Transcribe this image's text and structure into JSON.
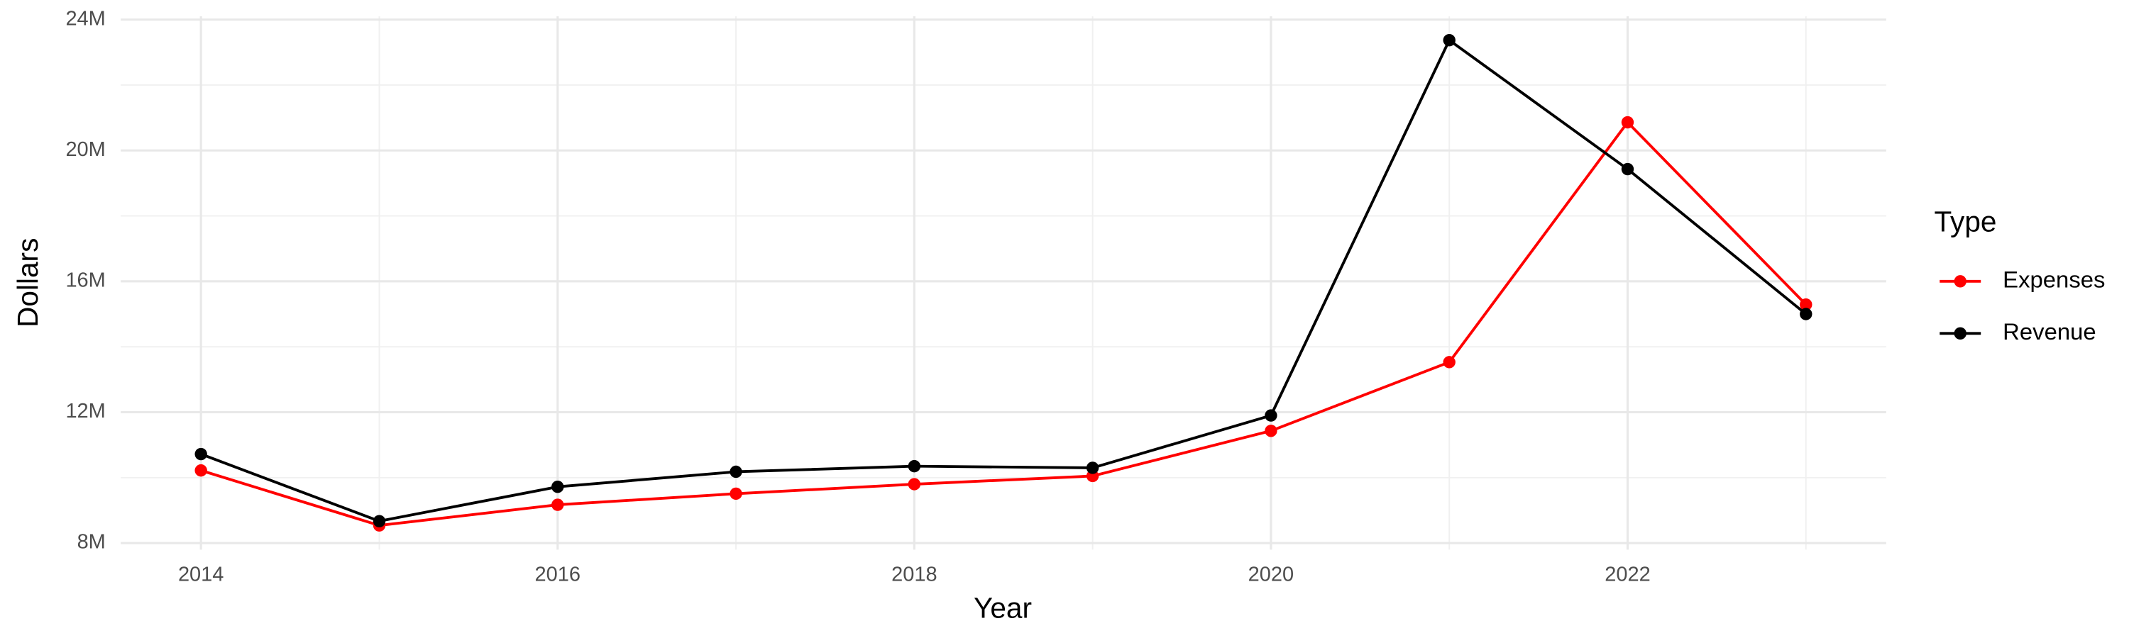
{
  "chart_data": {
    "type": "line",
    "x_label": "Year",
    "y_label": "Dollars",
    "legend_title": "Type",
    "x": [
      2014,
      2015,
      2016,
      2017,
      2018,
      2019,
      2020,
      2021,
      2022,
      2023
    ],
    "series": [
      {
        "name": "Expenses",
        "color": "#ff0000",
        "values": [
          10220000,
          8540000,
          9170000,
          9510000,
          9800000,
          10050000,
          11430000,
          13530000,
          20860000,
          15290000
        ]
      },
      {
        "name": "Revenue",
        "color": "#000000",
        "values": [
          10720000,
          8670000,
          9720000,
          10180000,
          10350000,
          10300000,
          11900000,
          23370000,
          19430000,
          15000000
        ]
      }
    ],
    "xlim": [
      2013.55,
      2023.45
    ],
    "xticks": [
      2014,
      2016,
      2018,
      2020,
      2022
    ],
    "ylim": [
      7800000,
      24100000
    ],
    "yticks": [
      {
        "value": 8000000,
        "label": "8M"
      },
      {
        "value": 12000000,
        "label": "12M"
      },
      {
        "value": 16000000,
        "label": "16M"
      },
      {
        "value": 20000000,
        "label": "20M"
      },
      {
        "value": 24000000,
        "label": "24M"
      }
    ],
    "grid": true,
    "legend_position": "right"
  }
}
